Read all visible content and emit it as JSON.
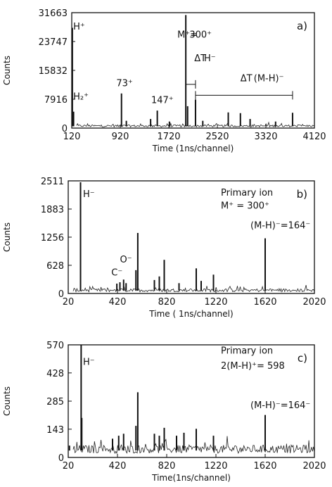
{
  "chart_data": [
    {
      "type": "line",
      "panel_label": "a)",
      "xlabel": "Time (1ns/channel)",
      "ylabel": "Counts",
      "xlim": [
        120,
        4120
      ],
      "ylim": [
        0,
        31663
      ],
      "xticks": [
        120,
        920,
        1720,
        2520,
        3320,
        4120
      ],
      "yticks": [
        0,
        7916,
        15832,
        23747,
        31663
      ],
      "baseline": 500,
      "peaks": [
        {
          "x": 130,
          "y": 27500
        },
        {
          "x": 150,
          "y": 4500
        },
        {
          "x": 940,
          "y": 9500
        },
        {
          "x": 1020,
          "y": 2000
        },
        {
          "x": 1420,
          "y": 2500
        },
        {
          "x": 1530,
          "y": 4800
        },
        {
          "x": 1730,
          "y": 1800
        },
        {
          "x": 2000,
          "y": 31000
        },
        {
          "x": 2030,
          "y": 6000
        },
        {
          "x": 2160,
          "y": 7800
        },
        {
          "x": 2280,
          "y": 2000
        },
        {
          "x": 2700,
          "y": 4300
        },
        {
          "x": 2900,
          "y": 4100
        },
        {
          "x": 3060,
          "y": 2500
        },
        {
          "x": 3480,
          "y": 1800
        },
        {
          "x": 3760,
          "y": 4200
        }
      ],
      "annotations": [
        {
          "text": "H⁺",
          "x": 145,
          "y": 27000
        },
        {
          "text": "H₂⁺",
          "x": 145,
          "y": 7800
        },
        {
          "text": "73⁺",
          "x": 855,
          "y": 11500
        },
        {
          "text": "147⁺",
          "x": 1430,
          "y": 6900
        },
        {
          "text": "M⁺=",
          "x": 1860,
          "y": 24800
        },
        {
          "text": "300⁺",
          "x": 2060,
          "y": 24800
        },
        {
          "text": "ΔT",
          "x": 2140,
          "y": 18300
        },
        {
          "text": "H⁻",
          "x": 2300,
          "y": 18300
        },
        {
          "text": "ΔT",
          "x": 2900,
          "y": 12800
        },
        {
          "text": "(M-H)⁻",
          "x": 3120,
          "y": 12800
        }
      ],
      "brackets": [
        {
          "x1": 2000,
          "x2": 2160,
          "y": 12000
        },
        {
          "x1": 2160,
          "x2": 3760,
          "y": 9000
        }
      ]
    },
    {
      "type": "line",
      "panel_label": "b)",
      "xlabel": "Time ( 1ns/channel)",
      "ylabel": "Counts",
      "xlim": [
        20,
        2020
      ],
      "ylim": [
        0,
        2511
      ],
      "xticks": [
        20,
        420,
        820,
        1220,
        1620,
        2020
      ],
      "yticks": [
        0,
        628,
        1256,
        1883,
        2511
      ],
      "baseline": 60,
      "peaks": [
        {
          "x": 120,
          "y": 2480
        },
        {
          "x": 415,
          "y": 220
        },
        {
          "x": 440,
          "y": 250
        },
        {
          "x": 470,
          "y": 310
        },
        {
          "x": 490,
          "y": 230
        },
        {
          "x": 570,
          "y": 520
        },
        {
          "x": 585,
          "y": 1350
        },
        {
          "x": 720,
          "y": 300
        },
        {
          "x": 760,
          "y": 380
        },
        {
          "x": 800,
          "y": 750
        },
        {
          "x": 920,
          "y": 230
        },
        {
          "x": 1060,
          "y": 560
        },
        {
          "x": 1100,
          "y": 280
        },
        {
          "x": 1200,
          "y": 420
        },
        {
          "x": 1620,
          "y": 1230
        }
      ],
      "annotations": [
        {
          "text": "H⁻",
          "x": 140,
          "y": 2150
        },
        {
          "text": "C⁻",
          "x": 370,
          "y": 400
        },
        {
          "text": "O⁻",
          "x": 440,
          "y": 690
        },
        {
          "text": "Primary ion",
          "x": 1260,
          "y": 2180
        },
        {
          "text": "M⁺ = 300⁺",
          "x": 1260,
          "y": 1890
        },
        {
          "text": "(M-H)⁻=164⁻",
          "x": 1500,
          "y": 1450
        }
      ]
    },
    {
      "type": "line",
      "panel_label": "c)",
      "xlabel": "Time(1ns/channel)",
      "ylabel": "Counts",
      "xlim": [
        20,
        2020
      ],
      "ylim": [
        0,
        570
      ],
      "xticks": [
        20,
        420,
        820,
        1220,
        1620,
        2020
      ],
      "yticks": [
        0,
        143,
        285,
        428,
        570
      ],
      "baseline": 35,
      "peaks": [
        {
          "x": 30,
          "y": 60
        },
        {
          "x": 125,
          "y": 570
        },
        {
          "x": 130,
          "y": 200
        },
        {
          "x": 380,
          "y": 95
        },
        {
          "x": 430,
          "y": 110
        },
        {
          "x": 470,
          "y": 120
        },
        {
          "x": 570,
          "y": 160
        },
        {
          "x": 585,
          "y": 330
        },
        {
          "x": 720,
          "y": 120
        },
        {
          "x": 760,
          "y": 110
        },
        {
          "x": 800,
          "y": 150
        },
        {
          "x": 900,
          "y": 110
        },
        {
          "x": 960,
          "y": 125
        },
        {
          "x": 1060,
          "y": 145
        },
        {
          "x": 1200,
          "y": 110
        },
        {
          "x": 1620,
          "y": 215
        }
      ],
      "annotations": [
        {
          "text": "H⁻",
          "x": 140,
          "y": 468
        },
        {
          "text": "Primary ion",
          "x": 1260,
          "y": 525
        },
        {
          "text": "2(M-H)⁺= 598",
          "x": 1260,
          "y": 448
        },
        {
          "text": "(M-H)⁻=164⁻",
          "x": 1500,
          "y": 250
        }
      ]
    }
  ]
}
